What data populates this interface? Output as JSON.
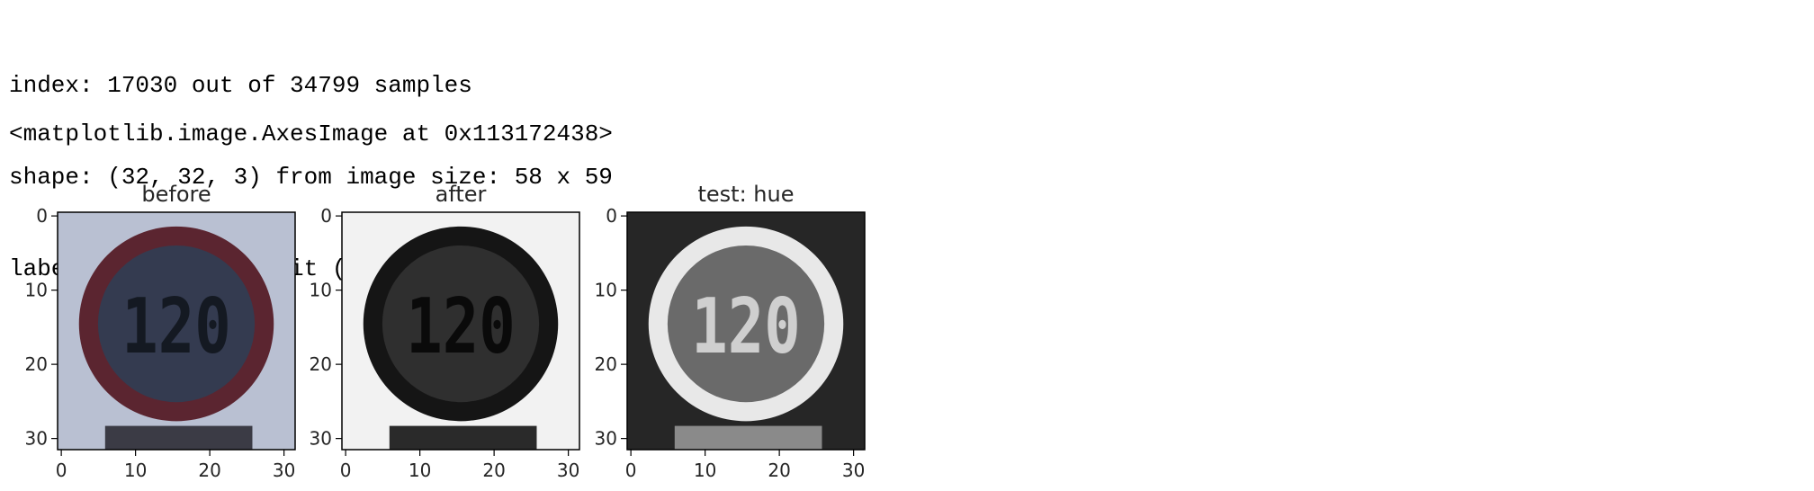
{
  "cell_output": {
    "lines": [
      "index: 17030 out of 34799 samples",
      "shape: (32, 32, 3) from image size: 58 x 59",
      "label: 8 - Speed limit (120km/h)"
    ],
    "repr": "<matplotlib.image.AxesImage at 0x113172438>"
  },
  "figure": {
    "panels": [
      {
        "title": "before",
        "sign_text": "120",
        "palette": {
          "bg": "#b9c0d2",
          "ring": "#5b2530",
          "disc": "#343b50",
          "text": "#141922",
          "post": "#3b3b45"
        }
      },
      {
        "title": "after",
        "sign_text": "120",
        "palette": {
          "bg": "#f2f2f2",
          "ring": "#151515",
          "disc": "#2f2f2f",
          "text": "#0a0a0a",
          "post": "#2a2a2a"
        }
      },
      {
        "title": "test: hue",
        "sign_text": "120",
        "palette": {
          "bg": "#262626",
          "ring": "#e8e8e8",
          "disc": "#6a6a6a",
          "text": "#cfcfcf",
          "post": "#8a8a8a"
        }
      }
    ],
    "x_ticks": [
      "0",
      "10",
      "20",
      "30"
    ],
    "y_ticks": [
      "0",
      "10",
      "20",
      "30"
    ]
  }
}
